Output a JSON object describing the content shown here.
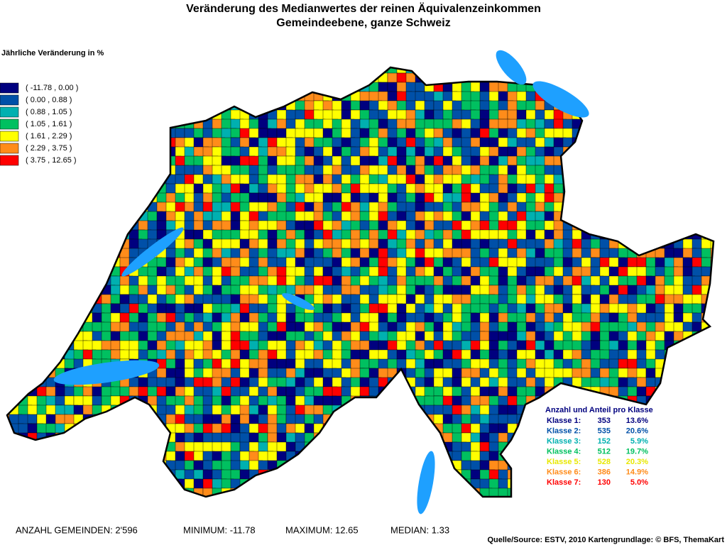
{
  "header": {
    "title_line1": "Veränderung des Medianwertes der reinen Äquivalenzeinkommen",
    "title_line2": "Gemeindeebene, ganze Schweiz"
  },
  "legend": {
    "title": "Jährliche Veränderung in %",
    "items": [
      {
        "label": "( -11.78 , 0.00 )",
        "color": "#00007f"
      },
      {
        "label": "( 0.00 , 0.88 )",
        "color": "#0050a8"
      },
      {
        "label": "( 0.88 , 1.05 )",
        "color": "#00b0b0"
      },
      {
        "label": "( 1.05 , 1.61 )",
        "color": "#00c060"
      },
      {
        "label": "( 1.61 , 2.29 )",
        "color": "#ffff00"
      },
      {
        "label": "( 2.29 , 3.75 )",
        "color": "#ff8c1a"
      },
      {
        "label": "( 3.75 , 12.65 )",
        "color": "#ff0000"
      }
    ]
  },
  "class_stats": {
    "title": "Anzahl und Anteil pro Klasse",
    "rows": [
      {
        "label": "Klasse 1:",
        "count": "353",
        "share": "13.6%"
      },
      {
        "label": "Klasse 2:",
        "count": "535",
        "share": "20.6%"
      },
      {
        "label": "Klasse 3:",
        "count": "152",
        "share": "5.9%"
      },
      {
        "label": "Klasse 4:",
        "count": "512",
        "share": "19.7%"
      },
      {
        "label": "Klasse 5:",
        "count": "528",
        "share": "20.3%"
      },
      {
        "label": "Klasse 6:",
        "count": "386",
        "share": "14.9%"
      },
      {
        "label": "Klasse 7:",
        "count": "130",
        "share": "5.0%"
      }
    ]
  },
  "footer": {
    "stats": [
      "ANZAHL GEMEINDEN: 2'596",
      "MINIMUM: -11.78",
      "MAXIMUM: 12.65",
      "MEDIAN: 1.33"
    ],
    "source": "Quelle/Source: ESTV, 2010 Kartengrundlage: © BFS, ThemaKart"
  }
}
